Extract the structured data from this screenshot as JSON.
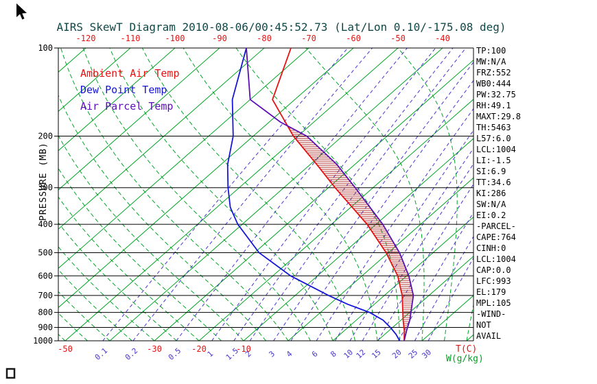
{
  "colors": {
    "background": "#ffffff",
    "frame": "#000000",
    "title": "#104848",
    "isotherm": "#00a524",
    "moist_adiabat": "#00a524",
    "mixing": "#4633d0",
    "temp_label": "#e51212",
    "pressure_label": "#000000"
  },
  "chart_data": {
    "type": "skewt-line",
    "title": "AIRS SkewT Diagram 2010-08-06/00:45:52.73 (Lat/Lon 0.10/-175.08 deg)",
    "pressure_axis": {
      "label": "PRESSURE (MB)",
      "scale": "log",
      "range": [
        100,
        1000
      ],
      "ticks": [
        100,
        200,
        300,
        400,
        500,
        600,
        700,
        800,
        900,
        1000
      ]
    },
    "temp_axis": {
      "label": "T(C)",
      "unit": "C",
      "top_ticks": [
        -120,
        -110,
        -100,
        -90,
        -80,
        -70,
        -60,
        -50,
        -40
      ],
      "bottom_ticks": [
        -50,
        -30,
        -20,
        -10
      ]
    },
    "mixing_axis": {
      "label": "W(g/kg)",
      "ticks": [
        0.1,
        0.2,
        0.5,
        1,
        1.5,
        2,
        3,
        4,
        6,
        8,
        10,
        12,
        15,
        20,
        25,
        30
      ]
    },
    "isotherms": {
      "start": -130,
      "end": 40,
      "step": 10
    },
    "moist_adiabats": {
      "start": -50,
      "end": 55,
      "step": 5
    },
    "series": [
      {
        "name": "Ambient Air Temp",
        "color": "#e51212",
        "pressure": [
          1000,
          925,
          850,
          700,
          600,
          500,
          400,
          300,
          250,
          200,
          150,
          100
        ],
        "temp": [
          26,
          23.5,
          20.5,
          14,
          8,
          -0.5,
          -12,
          -28.5,
          -38.5,
          -51,
          -65,
          -74
        ]
      },
      {
        "name": "Dew Point Temp",
        "color": "#1515d8",
        "pressure": [
          1000,
          950,
          900,
          850,
          800,
          750,
          700,
          600,
          500,
          400,
          350,
          300,
          250,
          200,
          150,
          100
        ],
        "temp": [
          25,
          22.5,
          19.5,
          16,
          11,
          4,
          -2.5,
          -16,
          -29,
          -41,
          -47,
          -52.5,
          -58.5,
          -64.5,
          -74,
          -84
        ]
      },
      {
        "name": "Air Parcel Temp",
        "color": "#5a0fb4",
        "pressure": [
          1000,
          925,
          850,
          700,
          600,
          500,
          400,
          300,
          250,
          200,
          179,
          150,
          100
        ],
        "temp": [
          26,
          24,
          22,
          16.5,
          10.5,
          2.5,
          -8.5,
          -24,
          -34,
          -48,
          -57.5,
          -70,
          -84
        ]
      }
    ],
    "cape_hatch": {
      "from_pressure": 993,
      "to_pressure": 179,
      "color": "#b03333"
    },
    "legend": [
      "Ambient Air Temp",
      "Dew Point Temp",
      "Air Parcel Temp"
    ]
  },
  "stats_panel": {
    "lines": [
      "TP:100",
      "MW:N/A",
      "FRZ:552",
      "WB0:444",
      "PW:32.75",
      "RH:49.1",
      "MAXT:29.8",
      "TH:5463",
      "L57:6.0",
      "LCL:1004",
      "LI:-1.5",
      "SI:6.9",
      "TT:34.6",
      "KI:286",
      "SW:N/A",
      "EI:0.2",
      "-PARCEL-",
      "CAPE:764",
      "CINH:0",
      "LCL:1004",
      "CAP:0.0",
      "LFC:993",
      "EL:179",
      "MPL:105",
      "-WIND-",
      "NOT",
      "AVAIL"
    ]
  },
  "icons": {
    "cursor": "arrow-pointer",
    "artifact": "window-glyph"
  }
}
